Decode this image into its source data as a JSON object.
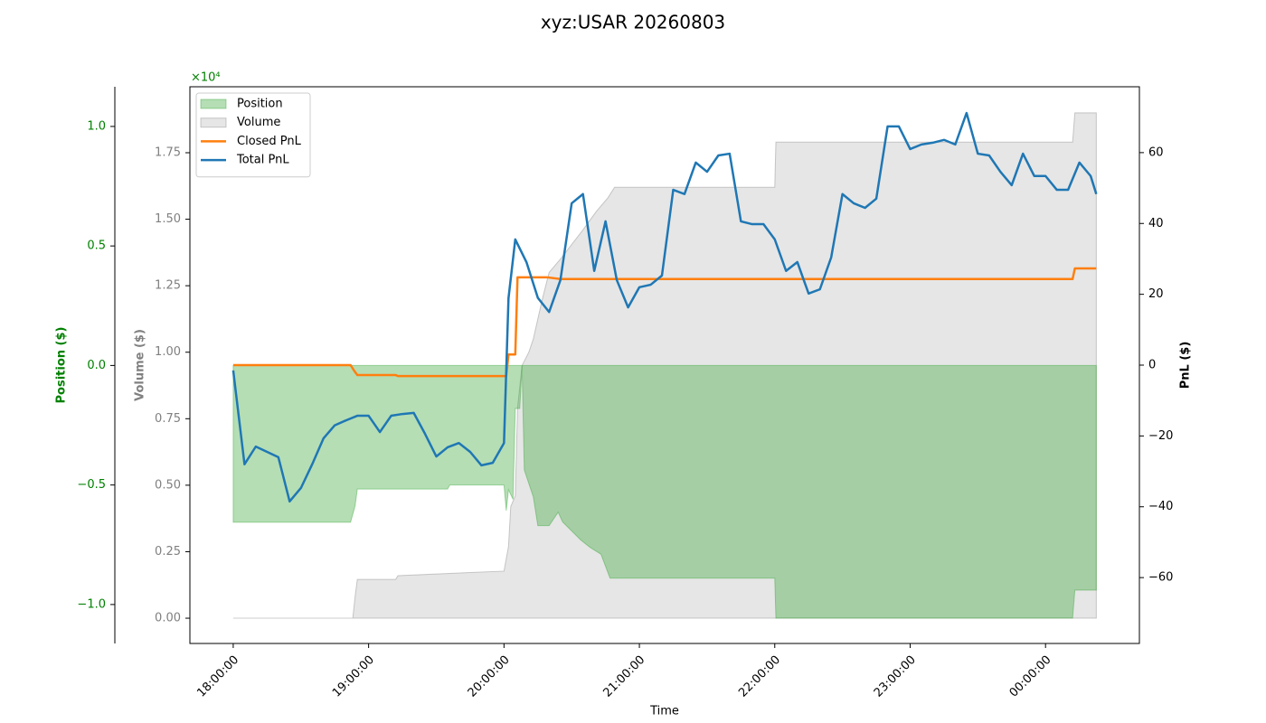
{
  "chart_data": {
    "type": "line",
    "title": "xyz:USAR 20260803",
    "xlabel": "Time",
    "xlim": [
      "17:40:48",
      "00:41:36"
    ],
    "xticks": [
      "18:00:00",
      "19:00:00",
      "20:00:00",
      "21:00:00",
      "22:00:00",
      "23:00:00",
      "00:00:00"
    ],
    "ylabel": "Position ($)",
    "y_offset_label": "×10⁴",
    "ylim": [
      -1.163,
      1.166
    ],
    "yticks": [
      {
        "value": -1,
        "label": "−1.0"
      },
      {
        "value": -0.5,
        "label": "−0.5"
      },
      {
        "value": 0,
        "label": "0.0"
      },
      {
        "value": 0.5,
        "label": "0.5"
      },
      {
        "value": 1,
        "label": "1.0"
      }
    ],
    "y_color": "#008000",
    "y2label": "Volume ($)",
    "y2lim": [
      -0.095,
      1.998
    ],
    "y2ticks": [
      {
        "value": 0,
        "label": "0.00"
      },
      {
        "value": 0.25,
        "label": "0.25"
      },
      {
        "value": 0.5,
        "label": "0.50"
      },
      {
        "value": 0.75,
        "label": "0.75"
      },
      {
        "value": 1,
        "label": "1.00"
      },
      {
        "value": 1.25,
        "label": "1.25"
      },
      {
        "value": 1.5,
        "label": "1.50"
      },
      {
        "value": 1.75,
        "label": "1.75"
      }
    ],
    "y2_color": "#808080",
    "y3label": "PnL ($)",
    "y3lim": [
      -78.6,
      78.6
    ],
    "y3ticks": [
      {
        "value": -60,
        "label": "−60"
      },
      {
        "value": -40,
        "label": "−40"
      },
      {
        "value": -20,
        "label": "−20"
      },
      0,
      20,
      40,
      60
    ],
    "legend": "upper left",
    "series": [
      {
        "name": "Position",
        "kind": "area",
        "axis": "y",
        "color": "#2ca02c",
        "x": [
          "18:00:00",
          "18:52:00",
          "18:54:00",
          "18:55:00",
          "19:35:00",
          "19:36:00",
          "20:00:00",
          "20:01:00",
          "20:02:00",
          "20:04:00",
          "20:05:00",
          "20:07:00",
          "20:08:00",
          "20:09:00",
          "20:13:00",
          "20:15:00",
          "20:20:00",
          "20:24:00",
          "20:26:00",
          "20:34:00",
          "20:38:00",
          "20:43:00",
          "20:47:00",
          "22:00:00",
          "22:00:30",
          "00:12:00",
          "00:13:00",
          "00:22:30"
        ],
        "values": [
          -0.656,
          -0.656,
          -0.588,
          -0.517,
          -0.517,
          -0.5,
          -0.5,
          -0.607,
          -0.52,
          -0.56,
          -0.18,
          -0.18,
          0,
          -0.437,
          -0.55,
          -0.67,
          -0.67,
          -0.614,
          -0.655,
          -0.73,
          -0.76,
          -0.79,
          -0.89,
          -0.89,
          -1.057,
          -1.057,
          -0.94,
          -0.94
        ]
      },
      {
        "name": "Volume",
        "kind": "area",
        "axis": "y2",
        "color": "#808080",
        "x": [
          "18:00:00",
          "18:53:00",
          "18:54:00",
          "18:55:00",
          "19:12:00",
          "19:13:00",
          "20:00:00",
          "20:02:00",
          "20:03:00",
          "20:05:00",
          "20:06:00",
          "20:08:00",
          "20:11:00",
          "20:13:00",
          "20:17:00",
          "20:20:00",
          "20:25:00",
          "20:35:00",
          "20:41:00",
          "20:46:00",
          "20:49:00",
          "22:00:00",
          "22:00:30",
          "00:12:00",
          "00:13:00",
          "00:22:30"
        ],
        "values": [
          0,
          0,
          0.08,
          0.146,
          0.146,
          0.16,
          0.177,
          0.27,
          0.42,
          0.46,
          0.79,
          0.95,
          1.0,
          1.05,
          1.2,
          1.3,
          1.35,
          1.46,
          1.53,
          1.58,
          1.62,
          1.62,
          1.79,
          1.79,
          1.9,
          1.9
        ]
      },
      {
        "name": "Closed PnL",
        "kind": "line",
        "axis": "y3",
        "color": "#ff7f0e",
        "x": [
          "18:00:00",
          "18:52:00",
          "18:53:30",
          "18:55:00",
          "19:12:00",
          "19:13:00",
          "20:01:00",
          "20:02:00",
          "20:05:00",
          "20:06:00",
          "20:19:00",
          "20:25:00",
          "00:12:00",
          "00:13:00",
          "00:22:30"
        ],
        "values": [
          0,
          0,
          -1.5,
          -2.8,
          -2.8,
          -3.1,
          -3.1,
          3,
          3,
          24.8,
          24.8,
          24.3,
          24.3,
          27.3,
          27.3
        ]
      },
      {
        "name": "Total PnL",
        "kind": "line",
        "axis": "y3",
        "color": "#1f77b4",
        "x": [
          "18:00:00",
          "18:05:00",
          "18:10:00",
          "18:15:00",
          "18:20:00",
          "18:25:00",
          "18:30:00",
          "18:35:00",
          "18:40:00",
          "18:45:00",
          "18:50:00",
          "18:55:00",
          "19:00:00",
          "19:05:00",
          "19:10:00",
          "19:15:00",
          "19:20:00",
          "19:25:00",
          "19:30:00",
          "19:35:00",
          "19:40:00",
          "19:45:00",
          "19:50:00",
          "19:55:00",
          "20:00:00",
          "20:02:00",
          "20:05:00",
          "20:10:00",
          "20:15:00",
          "20:20:00",
          "20:25:00",
          "20:30:00",
          "20:35:00",
          "20:40:00",
          "20:45:00",
          "20:50:00",
          "20:55:00",
          "21:00:00",
          "21:05:00",
          "21:10:00",
          "21:15:00",
          "21:20:00",
          "21:25:00",
          "21:30:00",
          "21:35:00",
          "21:40:00",
          "21:45:00",
          "21:50:00",
          "21:55:00",
          "22:00:00",
          "22:05:00",
          "22:10:00",
          "22:15:00",
          "22:20:00",
          "22:25:00",
          "22:30:00",
          "22:35:00",
          "22:40:00",
          "22:45:00",
          "22:50:00",
          "22:55:00",
          "23:00:00",
          "23:05:00",
          "23:10:00",
          "23:15:00",
          "23:20:00",
          "23:25:00",
          "23:30:00",
          "23:35:00",
          "23:40:00",
          "23:45:00",
          "23:50:00",
          "23:55:00",
          "00:00:00",
          "00:05:00",
          "00:10:00",
          "00:15:00",
          "00:20:00",
          "00:22:30"
        ],
        "values": [
          -1.5,
          -28,
          -23,
          -24.5,
          -26,
          -38.5,
          -34.7,
          -28,
          -20.7,
          -17,
          -15.6,
          -14.3,
          -14.3,
          -18.9,
          -14.3,
          -13.8,
          -13.5,
          -19.4,
          -25.8,
          -23.2,
          -22,
          -24.5,
          -28.3,
          -27.6,
          -22,
          18.9,
          35.5,
          29,
          19,
          15,
          24,
          45.7,
          48.3,
          26.6,
          40.6,
          24,
          16.3,
          22,
          22.7,
          25.3,
          49.5,
          48.3,
          57.2,
          54.6,
          59.2,
          59.7,
          40.6,
          39.8,
          39.8,
          35.5,
          26.6,
          29.1,
          20.2,
          21.4,
          30.4,
          48.3,
          45.7,
          44.4,
          47,
          67.4,
          67.4,
          61,
          62.3,
          62.8,
          63.6,
          62.3,
          71.2,
          59.7,
          59.2,
          54.6,
          50.8,
          59.7,
          53.4,
          53.4,
          49.5,
          49.5,
          57.2,
          53.4,
          48.3
        ]
      }
    ]
  }
}
